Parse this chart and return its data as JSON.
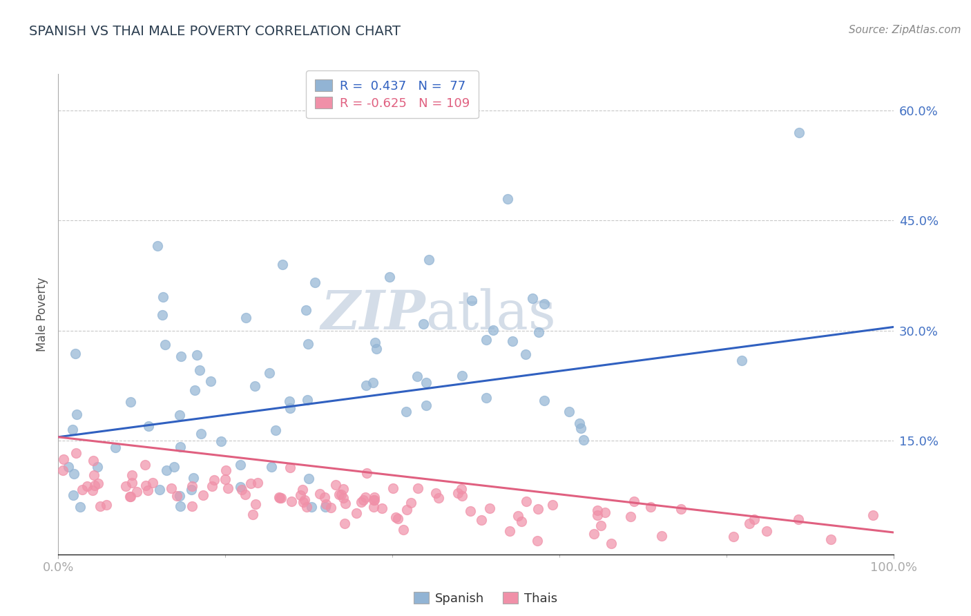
{
  "title": "SPANISH VS THAI MALE POVERTY CORRELATION CHART",
  "source": "Source: ZipAtlas.com",
  "ylabel": "Male Poverty",
  "xlim": [
    0,
    1
  ],
  "ylim": [
    -0.005,
    0.65
  ],
  "yticks": [
    0.15,
    0.3,
    0.45,
    0.6
  ],
  "ytick_labels": [
    "15.0%",
    "30.0%",
    "45.0%",
    "60.0%"
  ],
  "xtick_labels": [
    "0.0%",
    "100.0%"
  ],
  "spanish_color": "#92b4d4",
  "thai_color": "#f090a8",
  "spanish_line_color": "#3060c0",
  "thai_line_color": "#e06080",
  "spanish_R": 0.437,
  "spanish_N": 77,
  "thai_R": -0.625,
  "thai_N": 109,
  "background_color": "#ffffff",
  "grid_color": "#c8c8c8",
  "watermark_zip": "ZIP",
  "watermark_atlas": "atlas",
  "watermark_color": "#d4dde8",
  "legend_blue_r": "R =",
  "legend_blue_rv": "0.437",
  "legend_blue_n": "N =",
  "legend_blue_nv": "77",
  "legend_pink_r": "R =",
  "legend_pink_rv": "-0.625",
  "legend_pink_n": "N =",
  "legend_pink_nv": "109",
  "spanish_line_start_y": 0.155,
  "spanish_line_end_y": 0.305,
  "thai_line_start_y": 0.155,
  "thai_line_end_y": 0.025
}
